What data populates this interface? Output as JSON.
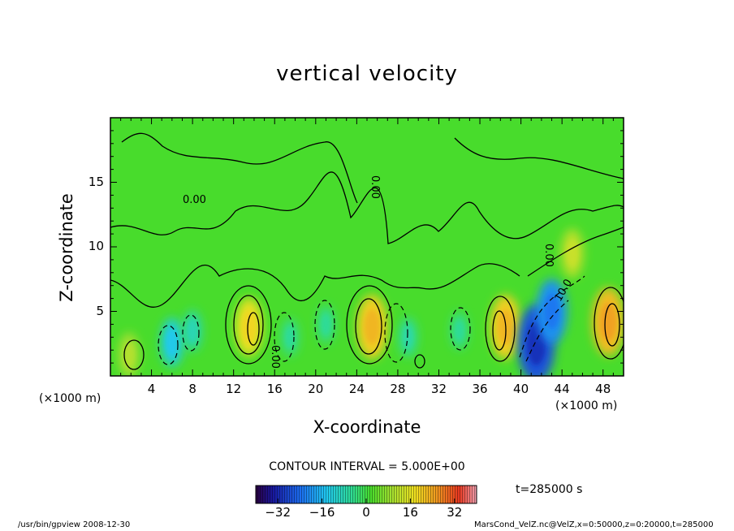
{
  "chart_data": {
    "type": "heatmap",
    "title": "vertical velocity",
    "xlabel": "X-coordinate",
    "ylabel": "Z-coordinate",
    "x_unit_label": "(×1000 m)",
    "xlim": [
      0,
      50
    ],
    "ylim": [
      0,
      20
    ],
    "x_ticks": [
      4,
      8,
      12,
      16,
      20,
      24,
      28,
      32,
      36,
      40,
      44,
      48
    ],
    "y_ticks": [
      5,
      10,
      15
    ],
    "contour_interval_label": "CONTOUR INTERVAL = 5.000E+00",
    "contour_labels": [
      "0.00",
      "0.00",
      "0.00",
      "0.00",
      "10.0"
    ],
    "colorbar": {
      "range": [
        -40,
        40
      ],
      "ticks": [
        -32,
        -16,
        0,
        16,
        32
      ]
    },
    "time_label": "t=285000 s",
    "features": [
      {
        "x": 13.5,
        "z": 3.8,
        "value": 15,
        "sign": "positive"
      },
      {
        "x": 25.5,
        "z": 3.8,
        "value": 18,
        "sign": "positive"
      },
      {
        "x": 38.5,
        "z": 3.8,
        "value": 18,
        "sign": "positive"
      },
      {
        "x": 48.5,
        "z": 4.2,
        "value": 20,
        "sign": "positive"
      },
      {
        "x": 1.8,
        "z": 1.6,
        "value": 8,
        "sign": "positive"
      },
      {
        "x": 6,
        "z": 2.6,
        "value": -10,
        "sign": "negative"
      },
      {
        "x": 8,
        "z": 3.5,
        "value": -6,
        "sign": "negative"
      },
      {
        "x": 17.5,
        "z": 3,
        "value": -4,
        "sign": "negative"
      },
      {
        "x": 21,
        "z": 4,
        "value": -4,
        "sign": "negative"
      },
      {
        "x": 29,
        "z": 3,
        "value": -5,
        "sign": "negative"
      },
      {
        "x": 34,
        "z": 3.5,
        "value": -4,
        "sign": "negative"
      },
      {
        "x": 41.5,
        "z": 2.5,
        "value": -25,
        "sign": "negative"
      },
      {
        "x": 43,
        "z": 5,
        "value": -18,
        "sign": "negative"
      },
      {
        "x": 45,
        "z": 9.5,
        "value": 10,
        "sign": "positive"
      }
    ]
  },
  "footer": {
    "left": "/usr/bin/gpview  2008-12-30",
    "right": "MarsCond_VelZ.nc@VelZ,x=0:50000,z=0:20000,t=285000"
  },
  "colors": {
    "background_field": "#48dc2c",
    "frame": "#000000"
  }
}
